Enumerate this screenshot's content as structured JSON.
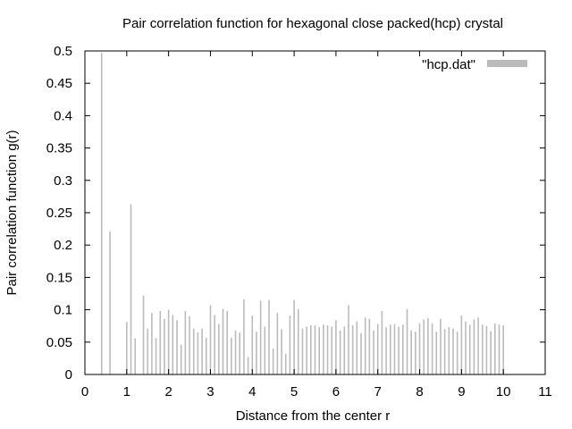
{
  "chart_data": {
    "type": "bar",
    "title": "Pair correlation function for hexagonal close packed(hcp) crystal",
    "xlabel": "Distance from the center r",
    "ylabel": "Pair correlation function g(r)",
    "xlim": [
      0,
      11
    ],
    "ylim": [
      0,
      0.5
    ],
    "xticks": [
      "0",
      "1",
      "2",
      "3",
      "4",
      "5",
      "6",
      "7",
      "8",
      "9",
      "10",
      "11"
    ],
    "yticks": [
      "0",
      "0.05",
      "0.1",
      "0.15",
      "0.2",
      "0.25",
      "0.3",
      "0.35",
      "0.4",
      "0.45",
      "0.5"
    ],
    "grid": false,
    "legend": {
      "placement": "top-right"
    },
    "colors": {
      "bars": "#bbbbbb",
      "axis": "#000000"
    },
    "series": [
      {
        "name": "\"hcp.dat\"",
        "x": [
          0.4,
          0.6,
          1.0,
          1.1,
          1.2,
          1.4,
          1.5,
          1.6,
          1.7,
          1.8,
          1.9,
          2.0,
          2.1,
          2.2,
          2.3,
          2.4,
          2.5,
          2.6,
          2.7,
          2.8,
          2.9,
          3.0,
          3.1,
          3.2,
          3.3,
          3.4,
          3.5,
          3.6,
          3.7,
          3.8,
          3.9,
          4.0,
          4.1,
          4.2,
          4.3,
          4.4,
          4.5,
          4.6,
          4.7,
          4.8,
          4.9,
          5.0,
          5.1,
          5.2,
          5.3,
          5.4,
          5.5,
          5.6,
          5.7,
          5.8,
          5.9,
          6.0,
          6.1,
          6.2,
          6.3,
          6.4,
          6.5,
          6.6,
          6.7,
          6.8,
          6.9,
          7.0,
          7.1,
          7.2,
          7.3,
          7.4,
          7.5,
          7.6,
          7.7,
          7.8,
          7.9,
          8.0,
          8.1,
          8.2,
          8.3,
          8.4,
          8.5,
          8.6,
          8.7,
          8.8,
          8.9,
          9.0,
          9.1,
          9.2,
          9.3,
          9.4,
          9.5,
          9.6,
          9.7,
          9.8,
          9.9,
          10.0
        ],
        "values": [
          0.497,
          0.221,
          0.081,
          0.263,
          0.056,
          0.122,
          0.071,
          0.095,
          0.056,
          0.098,
          0.086,
          0.1,
          0.092,
          0.084,
          0.046,
          0.098,
          0.09,
          0.071,
          0.065,
          0.071,
          0.057,
          0.107,
          0.092,
          0.078,
          0.101,
          0.098,
          0.057,
          0.068,
          0.065,
          0.116,
          0.027,
          0.091,
          0.066,
          0.114,
          0.074,
          0.115,
          0.04,
          0.095,
          0.07,
          0.032,
          0.091,
          0.115,
          0.101,
          0.071,
          0.074,
          0.076,
          0.076,
          0.073,
          0.077,
          0.076,
          0.074,
          0.084,
          0.068,
          0.074,
          0.107,
          0.076,
          0.082,
          0.064,
          0.088,
          0.086,
          0.068,
          0.078,
          0.098,
          0.073,
          0.077,
          0.078,
          0.074,
          0.077,
          0.101,
          0.068,
          0.066,
          0.079,
          0.085,
          0.087,
          0.079,
          0.066,
          0.086,
          0.07,
          0.073,
          0.071,
          0.066,
          0.091,
          0.082,
          0.077,
          0.085,
          0.088,
          0.077,
          0.075,
          0.067,
          0.079,
          0.077,
          0.076
        ]
      }
    ]
  }
}
